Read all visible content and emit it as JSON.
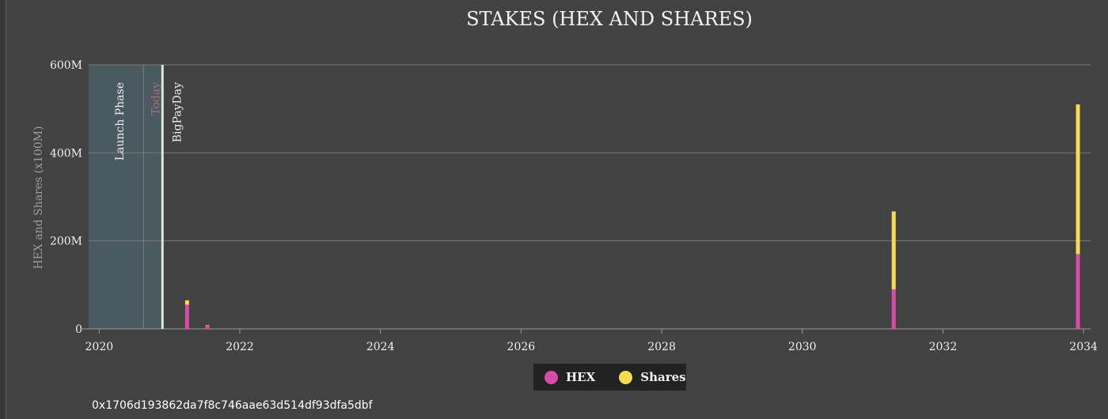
{
  "chart_data": {
    "type": "bar",
    "stacked": true,
    "title": "STAKES (HEX AND SHARES)",
    "ylabel": "HEX and Shares (x100M)",
    "xlabel": "",
    "xlim": [
      2019.85,
      2034.1
    ],
    "ylim": [
      0,
      600
    ],
    "y_unit": "M",
    "y_ticks": [
      0,
      200,
      400,
      600
    ],
    "y_tick_labels": [
      "0",
      "200M",
      "400M",
      "600M"
    ],
    "x_ticks": [
      2020,
      2022,
      2024,
      2026,
      2028,
      2030,
      2032,
      2034
    ],
    "x_tick_labels": [
      "2020",
      "2022",
      "2024",
      "2026",
      "2028",
      "2030",
      "2032",
      "2034"
    ],
    "grid": true,
    "legend_position": "bottom-center",
    "series": [
      {
        "name": "HEX",
        "color": "#d94ba8"
      },
      {
        "name": "Shares",
        "color": "#f5dc50"
      }
    ],
    "bars": [
      {
        "x": 2021.25,
        "hex": 55,
        "shares": 10
      },
      {
        "x": 2021.54,
        "hex": 8,
        "shares": 1
      },
      {
        "x": 2031.3,
        "hex": 90,
        "shares": 177
      },
      {
        "x": 2033.92,
        "hex": 170,
        "shares": 340
      }
    ],
    "annotations": [
      {
        "type": "band",
        "label": "Launch Phase",
        "x_start": 2019.85,
        "x_end": 2020.88
      },
      {
        "type": "line",
        "label": "Today",
        "x": 2020.63
      },
      {
        "type": "line",
        "label": "BigPayDay",
        "x": 2020.9
      }
    ]
  },
  "footer": {
    "address": "0x1706d193862da7f8c746aae63d514df93dfa5dbf"
  },
  "colors": {
    "background": "#424242",
    "band": "#4a5a61",
    "grid": "#7a7a7a",
    "today_line": "#8a7878",
    "bigpayday_line": "#d8ecd8",
    "legend_bg": "#222222"
  }
}
